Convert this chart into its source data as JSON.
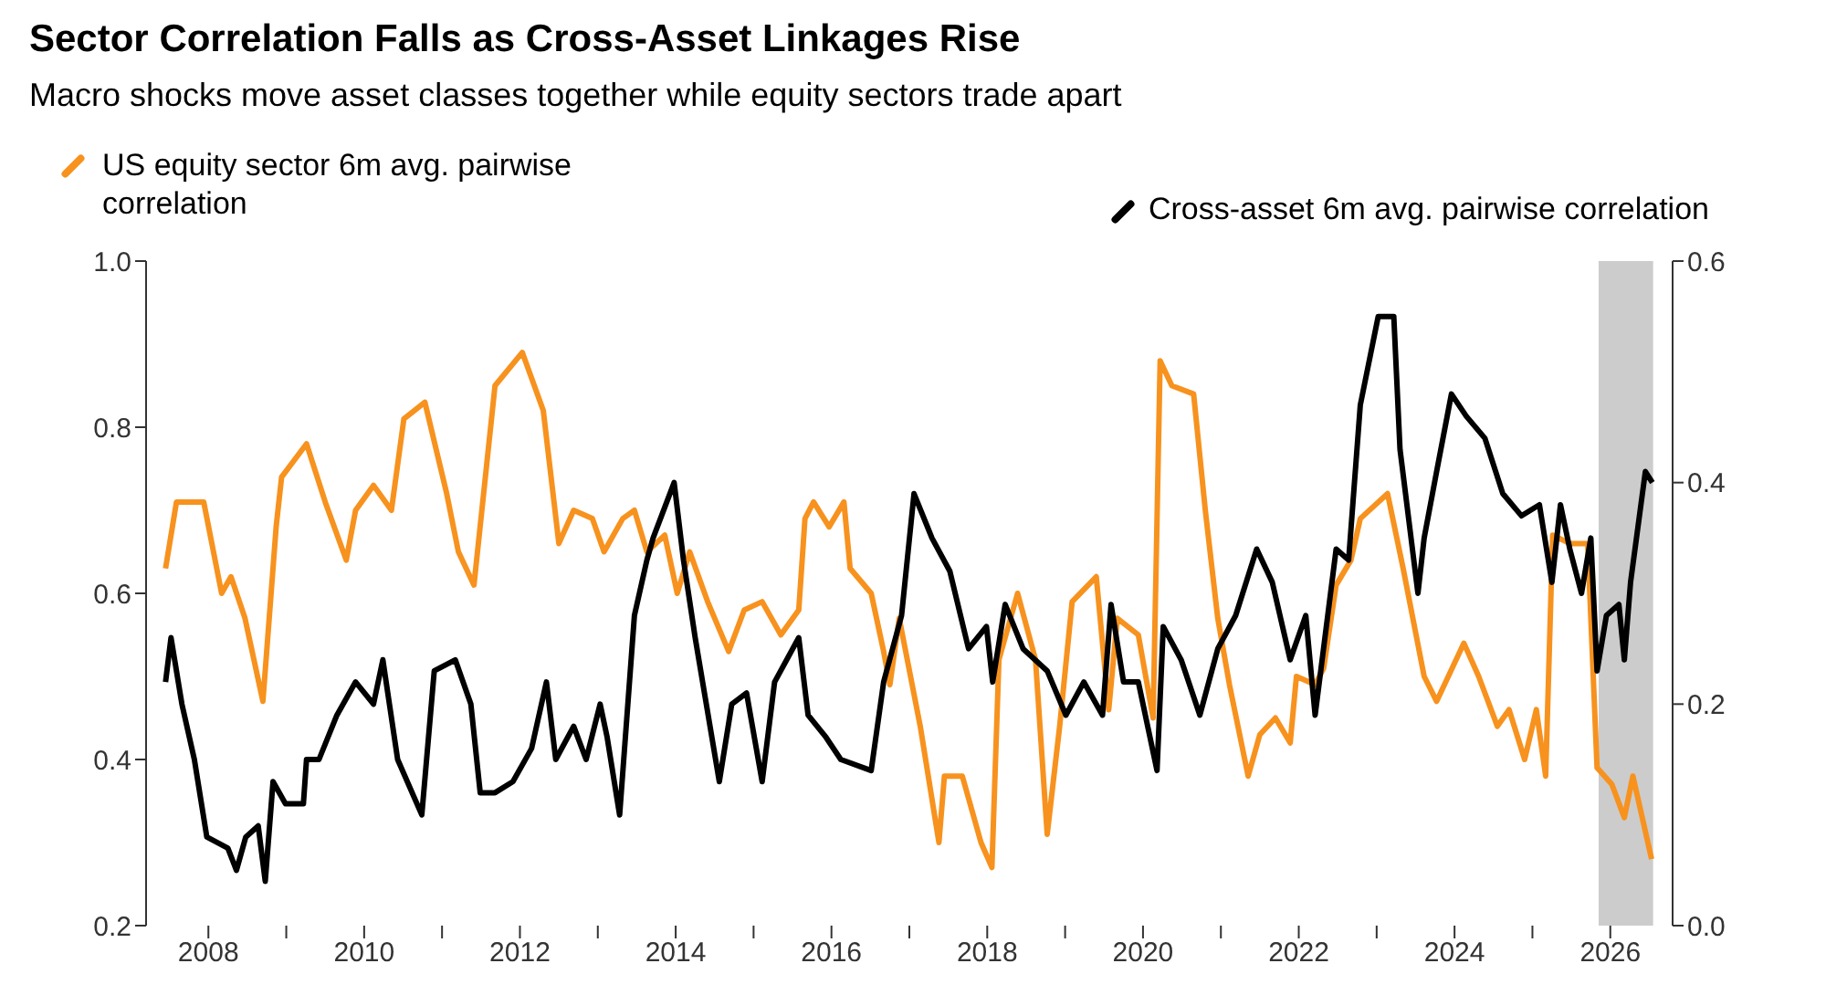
{
  "chart_data": {
    "type": "line",
    "title": "Sector Correlation Falls as Cross-Asset Linkages Rise",
    "subtitle": "Macro shocks move asset classes together while equity sectors trade apart",
    "legend": "top",
    "marker": "none",
    "xlim": [
      2007.2,
      2026.8
    ],
    "xticks": [
      2008,
      {
        "value": 2009,
        "label": null
      },
      2010,
      {
        "value": 2011,
        "label": null
      },
      2012,
      {
        "value": 2013,
        "label": null
      },
      2014,
      {
        "value": 2015,
        "label": null
      },
      2016,
      {
        "value": 2017,
        "label": null
      },
      2018,
      {
        "value": 2019,
        "label": null
      },
      2020,
      {
        "value": 2021,
        "label": null
      },
      2022,
      {
        "value": 2023,
        "label": null
      },
      2024,
      {
        "value": 2025,
        "label": null
      },
      2026
    ],
    "ylim": [
      0.2,
      1.0
    ],
    "yticks": [
      0.2,
      0.4,
      0.6,
      0.8,
      {
        "value": 1,
        "label": "1.0"
      }
    ],
    "y2lim": [
      0,
      0.6
    ],
    "y2ticks": [
      {
        "value": 0,
        "label": "0.0"
      },
      0.2,
      0.4,
      0.6
    ],
    "bands": [
      {
        "axis": "x",
        "from": 2025.85,
        "to": 2026.55,
        "color": "#cccccc"
      }
    ],
    "series": [
      {
        "name": "US equity sector 6m avg. pairwise correlation",
        "color": "#f7921e",
        "axis": "y",
        "x": [
          2007.45,
          2007.59,
          2007.94,
          2008.17,
          2008.29,
          2008.47,
          2008.7,
          2008.87,
          2008.94,
          2009.26,
          2009.5,
          2009.77,
          2009.89,
          2010.12,
          2010.35,
          2010.51,
          2010.78,
          2011.06,
          2011.21,
          2011.41,
          2011.68,
          2012.03,
          2012.3,
          2012.5,
          2012.69,
          2012.93,
          2013.08,
          2013.32,
          2013.47,
          2013.63,
          2013.86,
          2014.02,
          2014.18,
          2014.41,
          2014.68,
          2014.88,
          2015.11,
          2015.35,
          2015.58,
          2015.66,
          2015.77,
          2015.97,
          2016.16,
          2016.24,
          2016.51,
          2016.67,
          2016.75,
          2016.87,
          2017.14,
          2017.38,
          2017.45,
          2017.68,
          2017.92,
          2018.06,
          2018.15,
          2018.39,
          2018.62,
          2018.77,
          2018.93,
          2019.09,
          2019.4,
          2019.56,
          2019.67,
          2019.94,
          2020.13,
          2020.22,
          2020.37,
          2020.65,
          2020.8,
          2020.96,
          2021.11,
          2021.35,
          2021.5,
          2021.7,
          2021.89,
          2021.97,
          2022.21,
          2022.32,
          2022.48,
          2022.67,
          2022.79,
          2023.14,
          2023.34,
          2023.61,
          2023.77,
          2024.12,
          2024.31,
          2024.55,
          2024.7,
          2024.9,
          2025.05,
          2025.17,
          2025.26,
          2025.48,
          2025.71,
          2025.83,
          2026.02,
          2026.18,
          2026.29,
          2026.53
        ],
        "values": [
          0.63,
          0.71,
          0.71,
          0.6,
          0.62,
          0.57,
          0.47,
          0.68,
          0.74,
          0.78,
          0.71,
          0.64,
          0.7,
          0.73,
          0.7,
          0.81,
          0.83,
          0.72,
          0.65,
          0.61,
          0.85,
          0.89,
          0.82,
          0.66,
          0.7,
          0.69,
          0.65,
          0.69,
          0.7,
          0.65,
          0.67,
          0.6,
          0.65,
          0.59,
          0.53,
          0.58,
          0.59,
          0.55,
          0.58,
          0.69,
          0.71,
          0.68,
          0.71,
          0.63,
          0.6,
          0.53,
          0.49,
          0.57,
          0.44,
          0.3,
          0.38,
          0.38,
          0.3,
          0.27,
          0.52,
          0.6,
          0.52,
          0.31,
          0.44,
          0.59,
          0.62,
          0.46,
          0.57,
          0.55,
          0.45,
          0.88,
          0.85,
          0.84,
          0.7,
          0.57,
          0.49,
          0.38,
          0.43,
          0.45,
          0.42,
          0.5,
          0.49,
          0.51,
          0.61,
          0.64,
          0.69,
          0.72,
          0.63,
          0.5,
          0.47,
          0.54,
          0.5,
          0.44,
          0.46,
          0.4,
          0.46,
          0.38,
          0.67,
          0.66,
          0.66,
          0.39,
          0.37,
          0.33,
          0.38,
          0.28
        ]
      },
      {
        "name": "Cross-asset 6m avg. pairwise correlation",
        "color": "#000000",
        "axis": "y2",
        "x": [
          2007.45,
          2007.52,
          2007.66,
          2007.82,
          2007.98,
          2008.25,
          2008.36,
          2008.48,
          2008.64,
          2008.73,
          2008.83,
          2008.99,
          2009.22,
          2009.26,
          2009.42,
          2009.65,
          2009.89,
          2010.12,
          2010.24,
          2010.43,
          2010.74,
          2010.9,
          2011.17,
          2011.37,
          2011.49,
          2011.68,
          2011.91,
          2012.15,
          2012.34,
          2012.46,
          2012.69,
          2012.85,
          2013.03,
          2013.12,
          2013.28,
          2013.47,
          2013.63,
          2013.71,
          2013.98,
          2014.1,
          2014.25,
          2014.56,
          2014.72,
          2014.91,
          2015.11,
          2015.27,
          2015.58,
          2015.7,
          2015.93,
          2016.12,
          2016.51,
          2016.67,
          2016.9,
          2017.06,
          2017.29,
          2017.52,
          2017.76,
          2017.99,
          2018.07,
          2018.23,
          2018.46,
          2018.77,
          2019.01,
          2019.24,
          2019.48,
          2019.59,
          2019.75,
          2019.94,
          2020.18,
          2020.26,
          2020.49,
          2020.73,
          2020.96,
          2021.19,
          2021.46,
          2021.66,
          2021.89,
          2022.09,
          2022.21,
          2022.48,
          2022.64,
          2022.79,
          2023.02,
          2023.22,
          2023.3,
          2023.53,
          2023.61,
          2023.77,
          2023.96,
          2024.15,
          2024.39,
          2024.62,
          2024.86,
          2025.09,
          2025.25,
          2025.36,
          2025.48,
          2025.63,
          2025.75,
          2025.83,
          2025.95,
          2026.11,
          2026.18,
          2026.26,
          2026.45,
          2026.54
        ],
        "values": [
          0.22,
          0.26,
          0.2,
          0.15,
          0.08,
          0.07,
          0.05,
          0.08,
          0.09,
          0.04,
          0.13,
          0.11,
          0.11,
          0.15,
          0.15,
          0.19,
          0.22,
          0.2,
          0.24,
          0.15,
          0.1,
          0.23,
          0.24,
          0.2,
          0.12,
          0.12,
          0.13,
          0.16,
          0.22,
          0.15,
          0.18,
          0.15,
          0.2,
          0.17,
          0.1,
          0.28,
          0.33,
          0.35,
          0.4,
          0.33,
          0.26,
          0.13,
          0.2,
          0.21,
          0.13,
          0.22,
          0.26,
          0.19,
          0.17,
          0.15,
          0.14,
          0.22,
          0.28,
          0.39,
          0.35,
          0.32,
          0.25,
          0.27,
          0.22,
          0.29,
          0.25,
          0.23,
          0.19,
          0.22,
          0.19,
          0.29,
          0.22,
          0.22,
          0.14,
          0.27,
          0.24,
          0.19,
          0.25,
          0.28,
          0.34,
          0.31,
          0.24,
          0.28,
          0.19,
          0.34,
          0.33,
          0.47,
          0.55,
          0.55,
          0.43,
          0.3,
          0.35,
          0.41,
          0.48,
          0.46,
          0.44,
          0.39,
          0.37,
          0.38,
          0.31,
          0.38,
          0.34,
          0.3,
          0.35,
          0.23,
          0.28,
          0.29,
          0.24,
          0.31,
          0.41,
          0.4
        ]
      }
    ]
  }
}
